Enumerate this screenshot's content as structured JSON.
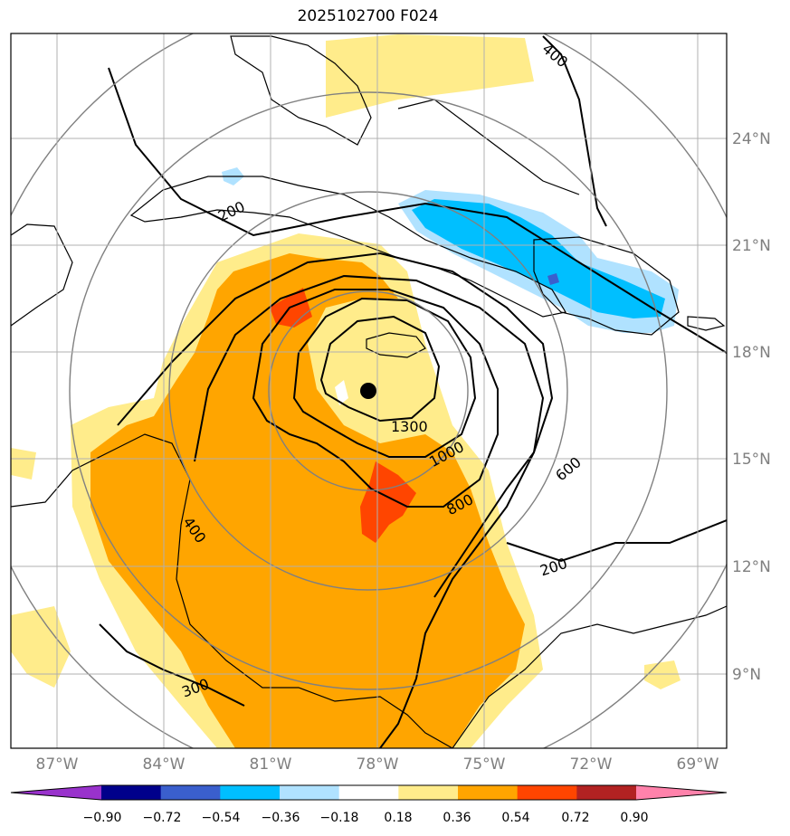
{
  "title": "2025102700 F024",
  "map": {
    "lon_labels": [
      "87°W",
      "84°W",
      "81°W",
      "78°W",
      "75°W",
      "72°W",
      "69°W"
    ],
    "lat_labels": [
      "24°N",
      "21°N",
      "18°N",
      "15°N",
      "12°N",
      "9°N"
    ],
    "contour_labels": [
      "400",
      "200",
      "1300",
      "1000",
      "800",
      "600",
      "200",
      "400",
      "300"
    ],
    "storm_center": {
      "lon": -78.3,
      "lat": 16.9,
      "marker": "black-dot"
    }
  },
  "colorbar": {
    "tick_labels": [
      "−0.90",
      "−0.72",
      "−0.54",
      "−0.36",
      "−0.18",
      "0.18",
      "0.36",
      "0.54",
      "0.72",
      "0.90"
    ],
    "colors": [
      "#9932cc",
      "#00008b",
      "#3a5fcd",
      "#00bfff",
      "#b0e2ff",
      "#ffffff",
      "#ffec8b",
      "#ffa500",
      "#ff4500",
      "#b22222",
      "#ff82ab"
    ]
  }
}
